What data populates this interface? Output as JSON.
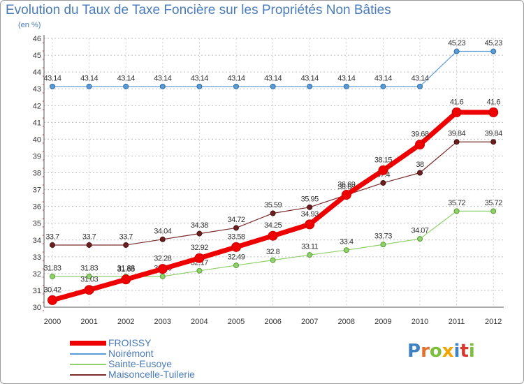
{
  "header": {
    "title": "Evolution du Taux de Taxe Foncière sur les Propriétés Non Bâties",
    "unit": "(en %)"
  },
  "logo": {
    "text": "Proxiti",
    "letters": [
      {
        "ch": "P",
        "color": "#3f82c4"
      },
      {
        "ch": "r",
        "color": "#e3702b"
      },
      {
        "ch": "o",
        "color": "#7cbf3a"
      },
      {
        "ch": "x",
        "color": "#f2a400"
      },
      {
        "ch": "i",
        "color": "#3f82c4"
      },
      {
        "ch": "t",
        "color": "#d63a2f"
      },
      {
        "ch": "i",
        "color": "#7cbf3a"
      }
    ]
  },
  "chart_data": {
    "type": "line",
    "categories": [
      "2000",
      "2001",
      "2002",
      "2003",
      "2004",
      "2005",
      "2006",
      "2007",
      "2008",
      "2009",
      "2010",
      "2011",
      "2012"
    ],
    "ylim": [
      30,
      46
    ],
    "yticks": [
      "30",
      "31",
      "32",
      "33",
      "34",
      "35",
      "36",
      "37",
      "38",
      "39",
      "40",
      "41",
      "42",
      "43",
      "44",
      "45",
      "46"
    ],
    "grid": true,
    "series": [
      {
        "name": "Noirémont",
        "color": "#5b9bd5",
        "values": [
          43.14,
          43.14,
          43.14,
          43.14,
          43.14,
          43.14,
          43.14,
          43.14,
          43.14,
          43.14,
          43.14,
          45.23,
          45.23
        ],
        "labels": [
          "43.14",
          "43.14",
          "43.14",
          "43.14",
          "43.14",
          "43.14",
          "43.14",
          "43.14",
          "43.14",
          "43.14",
          "43.14",
          "45.23",
          "45.23"
        ]
      },
      {
        "name": "Sainte-Eusoye",
        "color": "#8fd16a",
        "values": [
          31.83,
          31.83,
          31.83,
          31.83,
          32.17,
          32.49,
          32.8,
          33.11,
          33.4,
          33.73,
          34.07,
          35.72,
          35.72
        ],
        "labels": [
          "31.83",
          "31.83",
          "31.83",
          "31.83",
          "32.17",
          "32.49",
          "32.8",
          "33.11",
          "33.4",
          "33.73",
          "34.07",
          "35.72",
          "35.72"
        ]
      },
      {
        "name": "Maisoncelle-Tuilerie",
        "color": "#7a2a2a",
        "values": [
          33.7,
          33.7,
          33.7,
          34.04,
          34.38,
          34.72,
          35.59,
          35.95,
          36.68,
          37.4,
          38,
          39.84,
          39.84
        ],
        "labels": [
          "33.7",
          "33.7",
          "33.7",
          "34.04",
          "34.38",
          "34.72",
          "35.59",
          "35.95",
          "36.68",
          "37.4",
          "38",
          "39.84",
          "39.84"
        ]
      },
      {
        "name": "FROISSY",
        "color": "#ee0000",
        "values": [
          30.42,
          31.03,
          31.65,
          32.28,
          32.92,
          33.58,
          34.25,
          34.93,
          36.69,
          38.15,
          39.68,
          41.6,
          41.6
        ],
        "labels": [
          "30.42",
          "31.03",
          "31.65",
          "32.28",
          "32.92",
          "33.58",
          "34.25",
          "34.93",
          "36.69",
          "38.15",
          "39.68",
          "41.6",
          "41.6"
        ]
      }
    ],
    "legend": [
      "FROISSY",
      "Noirémont",
      "Sainte-Eusoye",
      "Maisoncelle-Tuilerie"
    ]
  }
}
